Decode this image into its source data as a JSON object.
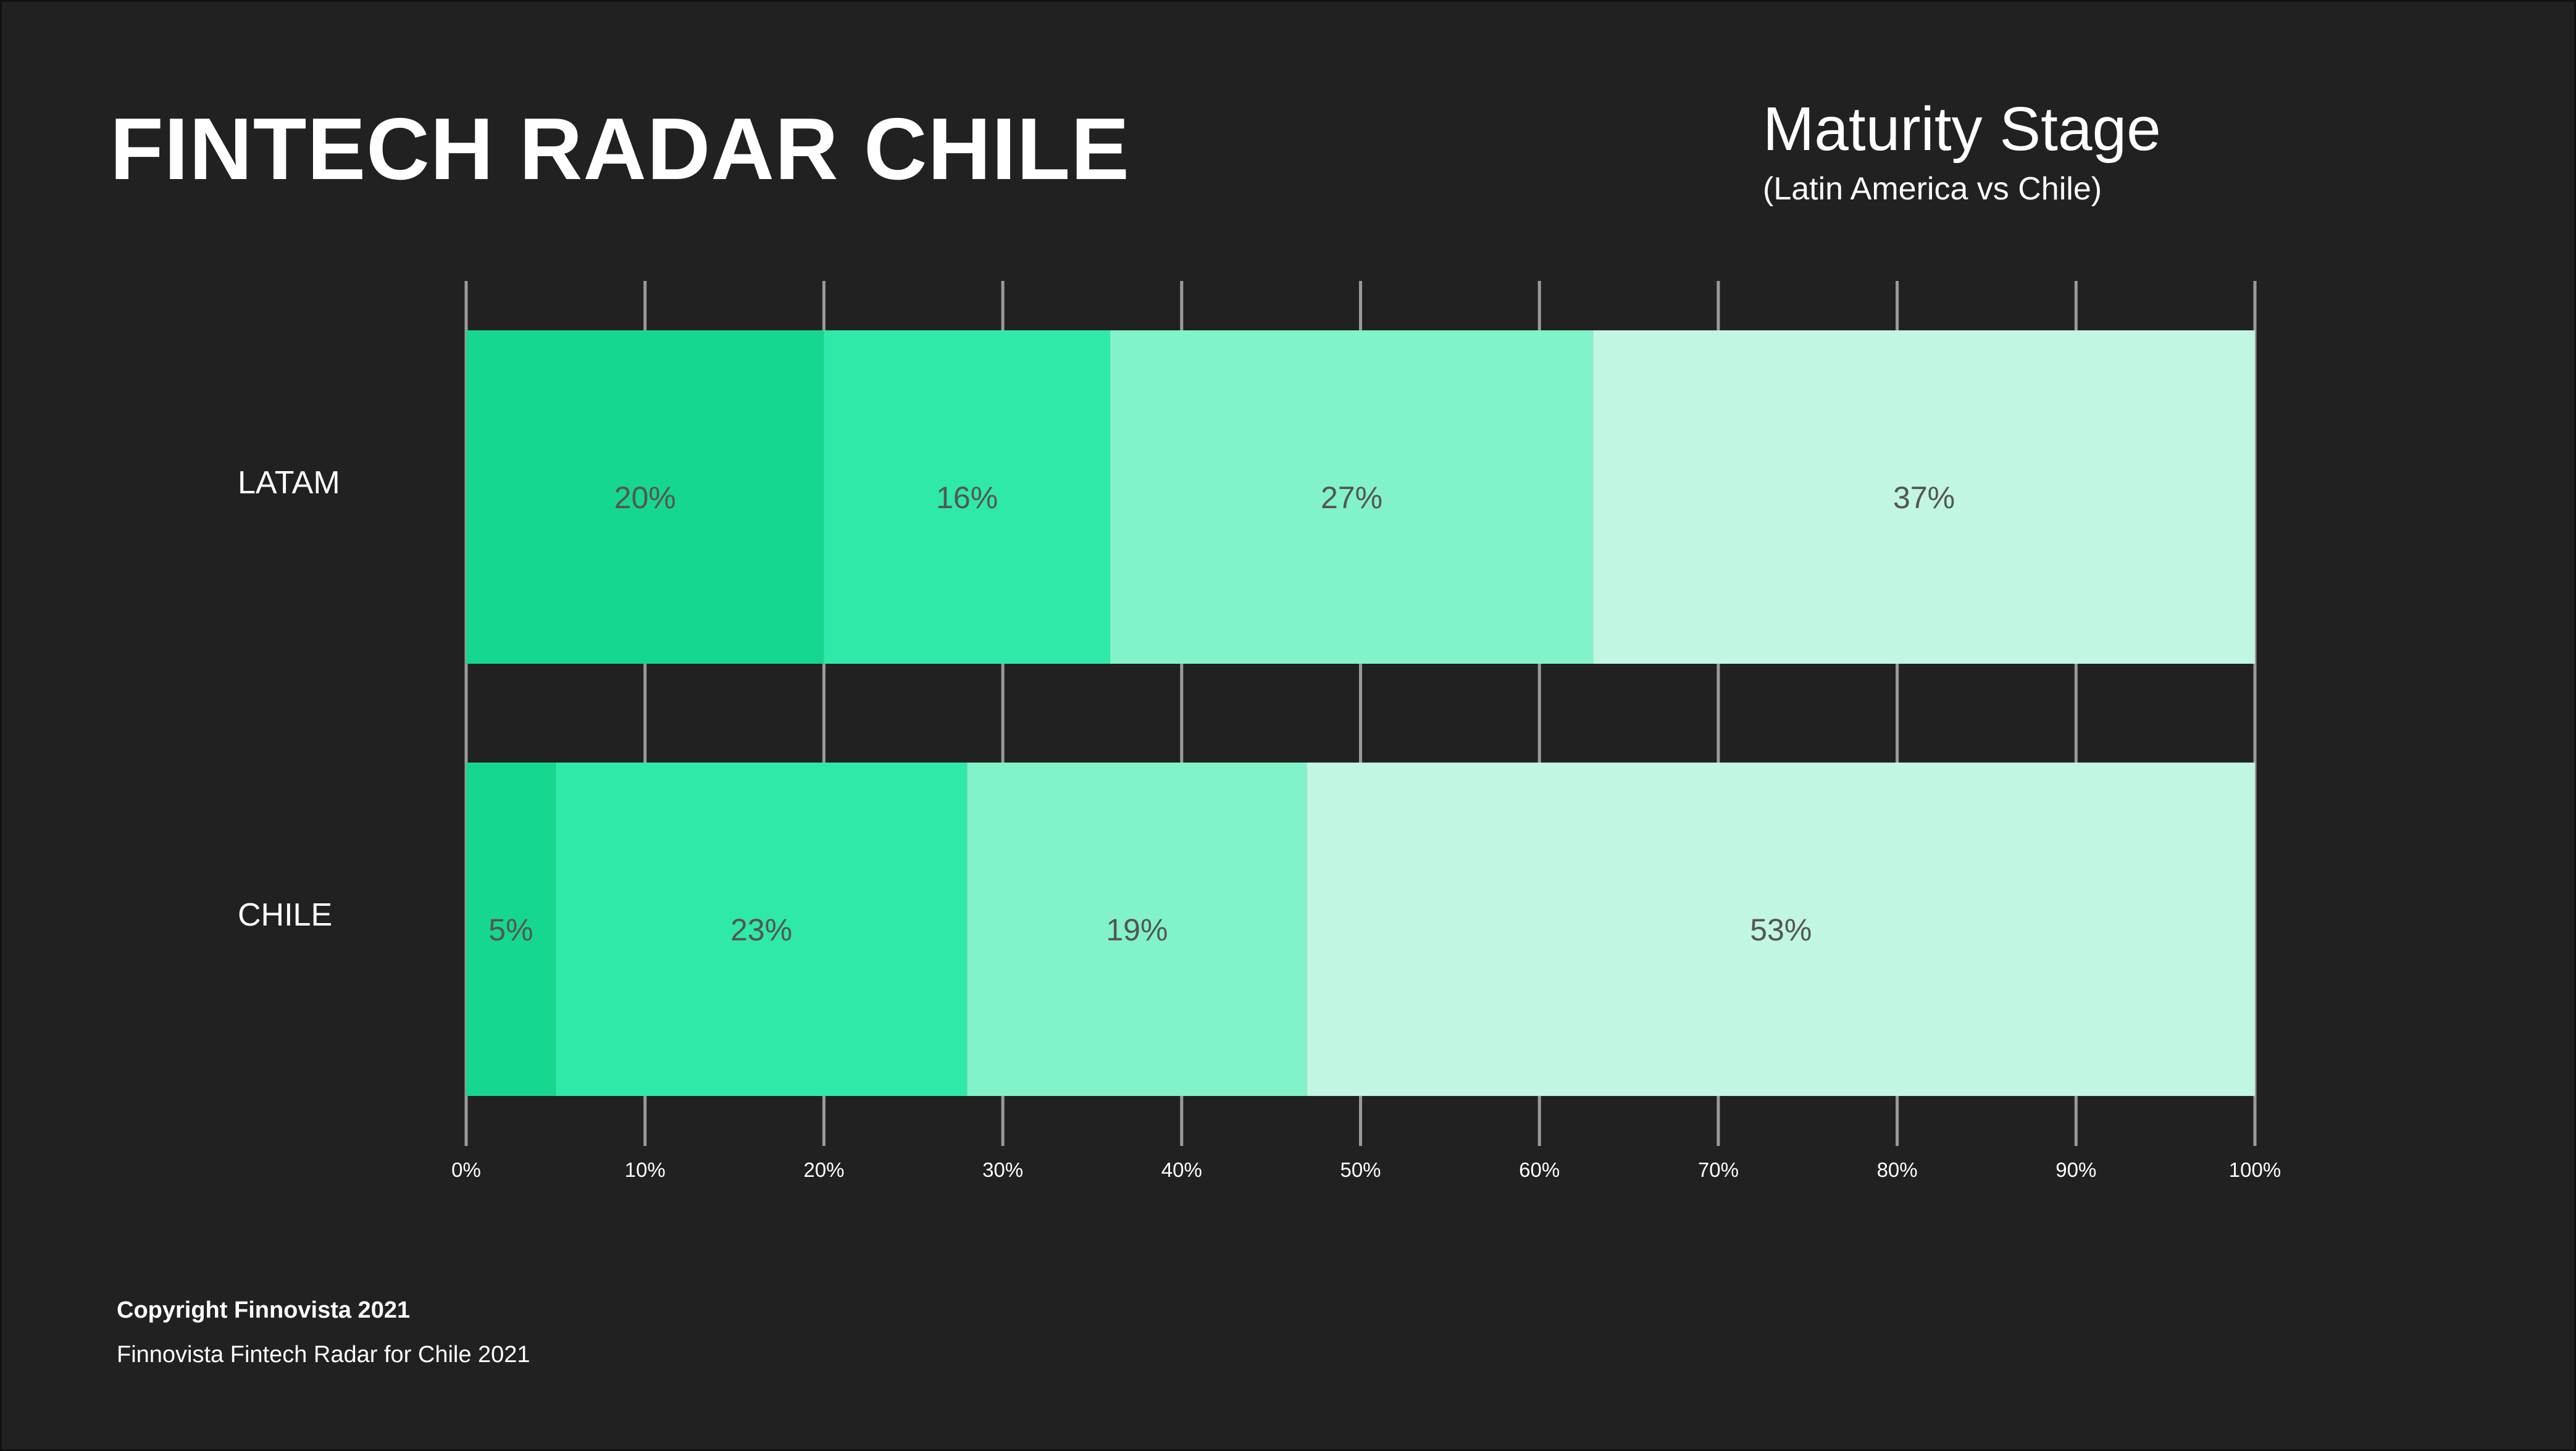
{
  "page": {
    "title": "FINTECH RADAR CHILE",
    "footer_copyright": "Copyright Finnovista 2021",
    "footer_source": "Finnovista Fintech Radar for Chile 2021"
  },
  "colors": {
    "background": "#212121",
    "segments": [
      "#16d78f",
      "#2fe9a8",
      "#82f3c9",
      "#c0f6e2"
    ],
    "label_text": "#555555",
    "grid": "#9a9a9a"
  },
  "chart_data": {
    "type": "bar",
    "orientation": "horizontal",
    "stacked": true,
    "title": "Maturity Stage",
    "subtitle": "(Latin America vs Chile)",
    "categories": [
      "LATAM",
      "CHILE"
    ],
    "series": [
      {
        "values": [
          20,
          5
        ],
        "labels": [
          "20%",
          "5%"
        ]
      },
      {
        "values": [
          16,
          23
        ],
        "labels": [
          "16%",
          "23%"
        ]
      },
      {
        "values": [
          27,
          19
        ],
        "labels": [
          "27%",
          "19%"
        ]
      },
      {
        "values": [
          37,
          53
        ],
        "labels": [
          "37%",
          "53%"
        ]
      }
    ],
    "xlim": [
      0,
      100
    ],
    "x_ticks": [
      "0%",
      "10%",
      "20%",
      "30%",
      "40%",
      "50%",
      "60%",
      "70%",
      "80%",
      "90%",
      "100%"
    ],
    "grid": true,
    "legend": "none"
  }
}
